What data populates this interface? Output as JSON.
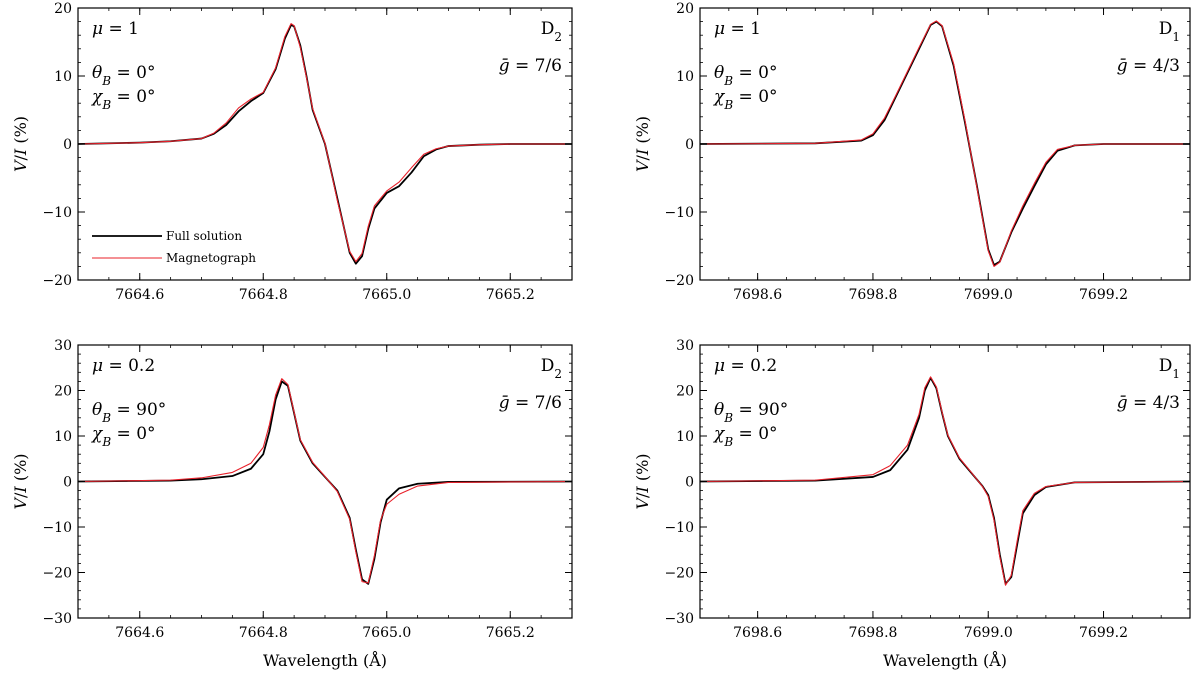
{
  "figure": {
    "xlabel": "Wavelength (Å)",
    "ylabel": "V/I (%)",
    "legend": {
      "placement": "lower-left of top-left panel",
      "entries": [
        {
          "label": "Full solution",
          "color": "#000000"
        },
        {
          "label": "Magnetograph",
          "color": "#e8202a"
        }
      ]
    }
  },
  "chart_data": [
    {
      "type": "line",
      "line": "D2",
      "annotations": {
        "mu": "μ = 1",
        "line": "D2",
        "g": "ḡ = 7/6",
        "theta": "θB = 0°",
        "chi": "χB = 0°"
      },
      "xlim": [
        7664.5,
        7665.3
      ],
      "ylim": [
        -20,
        20
      ],
      "xticks": [
        7664.6,
        7664.8,
        7665.0,
        7665.2
      ],
      "xtick_labels": [
        "7664.6",
        "7664.8",
        "7665.0",
        "7665.2"
      ],
      "yticks": [
        -20,
        -10,
        0,
        10,
        20
      ],
      "ytick_labels": [
        "−20",
        "−10",
        "0",
        "10",
        "20"
      ],
      "grid": false,
      "series": [
        {
          "name": "Full solution",
          "color": "#000000",
          "x": [
            7664.5,
            7664.6,
            7664.65,
            7664.7,
            7664.72,
            7664.74,
            7664.76,
            7664.78,
            7664.8,
            7664.82,
            7664.835,
            7664.845,
            7664.85,
            7664.86,
            7664.87,
            7664.88,
            7664.9,
            7664.92,
            7664.94,
            7664.95,
            7664.96,
            7664.97,
            7664.98,
            7665.0,
            7665.02,
            7665.04,
            7665.06,
            7665.08,
            7665.1,
            7665.15,
            7665.2,
            7665.3
          ],
          "y": [
            0,
            0.2,
            0.4,
            0.8,
            1.5,
            2.8,
            4.8,
            6.3,
            7.5,
            11,
            15.5,
            17.5,
            17.3,
            14.5,
            10,
            5,
            0,
            -8,
            -16,
            -17.6,
            -16.5,
            -12.5,
            -9.5,
            -7.2,
            -6.2,
            -4.2,
            -1.8,
            -0.8,
            -0.3,
            -0.1,
            0,
            0
          ]
        },
        {
          "name": "Magnetograph",
          "color": "#e8202a",
          "x": [
            7664.5,
            7664.6,
            7664.65,
            7664.7,
            7664.72,
            7664.74,
            7664.76,
            7664.78,
            7664.8,
            7664.82,
            7664.835,
            7664.845,
            7664.85,
            7664.86,
            7664.87,
            7664.88,
            7664.9,
            7664.92,
            7664.94,
            7664.95,
            7664.96,
            7664.97,
            7664.98,
            7665.0,
            7665.02,
            7665.04,
            7665.06,
            7665.08,
            7665.1,
            7665.15,
            7665.2,
            7665.3
          ],
          "y": [
            0,
            0.2,
            0.4,
            0.8,
            1.6,
            3.1,
            5.3,
            6.6,
            7.6,
            11.2,
            15.8,
            17.7,
            17.4,
            14.2,
            9.8,
            5.2,
            0.1,
            -8.3,
            -15.8,
            -17.3,
            -16.1,
            -12.1,
            -9.1,
            -6.9,
            -5.6,
            -3.5,
            -1.5,
            -0.7,
            -0.3,
            -0.1,
            0,
            0
          ]
        }
      ]
    },
    {
      "type": "line",
      "line": "D1",
      "annotations": {
        "mu": "μ = 1",
        "line": "D1",
        "g": "ḡ = 4/3",
        "theta": "θB = 0°",
        "chi": "χB = 0°"
      },
      "xlim": [
        7698.5,
        7699.35
      ],
      "ylim": [
        -20,
        20
      ],
      "xticks": [
        7698.6,
        7698.8,
        7699.0,
        7699.2
      ],
      "xtick_labels": [
        "7698.6",
        "7698.8",
        "7699.0",
        "7699.2"
      ],
      "yticks": [
        -20,
        -10,
        0,
        10,
        20
      ],
      "ytick_labels": [
        "−20",
        "−10",
        "0",
        "10",
        "20"
      ],
      "grid": false,
      "series": [
        {
          "name": "Full solution",
          "color": "#000000",
          "x": [
            7698.5,
            7698.7,
            7698.78,
            7698.8,
            7698.82,
            7698.84,
            7698.86,
            7698.88,
            7698.9,
            7698.91,
            7698.92,
            7698.94,
            7698.96,
            7698.98,
            7699.0,
            7699.01,
            7699.02,
            7699.04,
            7699.06,
            7699.08,
            7699.1,
            7699.12,
            7699.15,
            7699.2,
            7699.35
          ],
          "y": [
            0,
            0.1,
            0.5,
            1.3,
            3.5,
            7,
            10.5,
            14,
            17.5,
            18,
            17.3,
            11.5,
            3,
            -6,
            -15.5,
            -17.8,
            -17.3,
            -13,
            -9.5,
            -6.2,
            -3,
            -1,
            -0.2,
            0,
            0
          ]
        },
        {
          "name": "Magnetograph",
          "color": "#e8202a",
          "x": [
            7698.5,
            7698.7,
            7698.78,
            7698.8,
            7698.82,
            7698.84,
            7698.86,
            7698.88,
            7698.9,
            7698.91,
            7698.92,
            7698.94,
            7698.96,
            7698.98,
            7699.0,
            7699.01,
            7699.02,
            7699.04,
            7699.06,
            7699.08,
            7699.1,
            7699.12,
            7699.15,
            7699.2,
            7699.35
          ],
          "y": [
            0,
            0.1,
            0.6,
            1.5,
            3.8,
            7.2,
            10.7,
            14.2,
            17.6,
            18.1,
            17.4,
            11.8,
            3.3,
            -6.2,
            -15.7,
            -18,
            -17.4,
            -12.8,
            -9.1,
            -5.8,
            -2.7,
            -0.8,
            -0.2,
            0,
            0
          ]
        }
      ]
    },
    {
      "type": "line",
      "line": "D2",
      "annotations": {
        "mu": "μ = 0.2",
        "line": "D2",
        "g": "ḡ = 7/6",
        "theta": "θB = 90°",
        "chi": "χB = 0°"
      },
      "xlim": [
        7664.5,
        7665.3
      ],
      "ylim": [
        -30,
        30
      ],
      "xticks": [
        7664.6,
        7664.8,
        7665.0,
        7665.2
      ],
      "xtick_labels": [
        "7664.6",
        "7664.8",
        "7665.0",
        "7665.2"
      ],
      "yticks": [
        -30,
        -20,
        -10,
        0,
        10,
        20,
        30
      ],
      "ytick_labels": [
        "−30",
        "−20",
        "−10",
        "0",
        "10",
        "20",
        "30"
      ],
      "grid": false,
      "series": [
        {
          "name": "Full solution",
          "color": "#000000",
          "x": [
            7664.5,
            7664.65,
            7664.7,
            7664.75,
            7664.78,
            7664.8,
            7664.81,
            7664.82,
            7664.83,
            7664.84,
            7664.85,
            7664.86,
            7664.88,
            7664.9,
            7664.92,
            7664.94,
            7664.95,
            7664.96,
            7664.97,
            7664.98,
            7664.99,
            7665.0,
            7665.02,
            7665.05,
            7665.1,
            7665.3
          ],
          "y": [
            0,
            0.2,
            0.5,
            1.2,
            2.8,
            6,
            11,
            18,
            22,
            21,
            15,
            9,
            4,
            1,
            -2,
            -8,
            -15,
            -21.5,
            -22.5,
            -17,
            -9,
            -4,
            -1.5,
            -0.5,
            -0.1,
            0
          ]
        },
        {
          "name": "Magnetograph",
          "color": "#e8202a",
          "x": [
            7664.5,
            7664.65,
            7664.7,
            7664.75,
            7664.78,
            7664.8,
            7664.81,
            7664.82,
            7664.83,
            7664.84,
            7664.85,
            7664.86,
            7664.88,
            7664.9,
            7664.92,
            7664.94,
            7664.95,
            7664.96,
            7664.97,
            7664.98,
            7664.99,
            7665.0,
            7665.02,
            7665.05,
            7665.1,
            7665.3
          ],
          "y": [
            0,
            0.3,
            0.8,
            2,
            4,
            7.5,
            12.5,
            19,
            22.6,
            21.3,
            15.2,
            9.2,
            4.2,
            1.1,
            -2.2,
            -8.3,
            -15.5,
            -22,
            -22.3,
            -16.3,
            -8.5,
            -5,
            -2.8,
            -1,
            -0.2,
            0
          ]
        }
      ]
    },
    {
      "type": "line",
      "line": "D1",
      "annotations": {
        "mu": "μ = 0.2",
        "line": "D1",
        "g": "ḡ = 4/3",
        "theta": "θB = 90°",
        "chi": "χB = 0°"
      },
      "xlim": [
        7698.5,
        7699.35
      ],
      "ylim": [
        -30,
        30
      ],
      "xticks": [
        7698.6,
        7698.8,
        7699.0,
        7699.2
      ],
      "xtick_labels": [
        "7698.6",
        "7698.8",
        "7699.0",
        "7699.2"
      ],
      "yticks": [
        -30,
        -20,
        -10,
        0,
        10,
        20,
        30
      ],
      "ytick_labels": [
        "−30",
        "−20",
        "−10",
        "0",
        "10",
        "20",
        "30"
      ],
      "grid": false,
      "series": [
        {
          "name": "Full solution",
          "color": "#000000",
          "x": [
            7698.5,
            7698.7,
            7698.8,
            7698.83,
            7698.86,
            7698.88,
            7698.89,
            7698.9,
            7698.91,
            7698.92,
            7698.93,
            7698.95,
            7698.97,
            7698.99,
            7699.0,
            7699.01,
            7699.02,
            7699.03,
            7699.04,
            7699.05,
            7699.06,
            7699.08,
            7699.1,
            7699.15,
            7699.35
          ],
          "y": [
            0,
            0.2,
            1,
            2.5,
            7,
            14,
            20,
            22.8,
            20.5,
            15,
            10,
            5,
            2,
            -1,
            -3,
            -8,
            -16,
            -22.5,
            -21,
            -14,
            -7,
            -3,
            -1.2,
            -0.2,
            0
          ]
        },
        {
          "name": "Magnetograph",
          "color": "#e8202a",
          "x": [
            7698.5,
            7698.7,
            7698.8,
            7698.83,
            7698.86,
            7698.88,
            7698.89,
            7698.9,
            7698.91,
            7698.92,
            7698.93,
            7698.95,
            7698.97,
            7698.99,
            7699.0,
            7699.01,
            7699.02,
            7699.03,
            7699.04,
            7699.05,
            7699.06,
            7699.08,
            7699.1,
            7699.15,
            7699.35
          ],
          "y": [
            0,
            0.3,
            1.5,
            3.5,
            8,
            14.8,
            20.6,
            23,
            20.8,
            15.2,
            10.2,
            5.2,
            2.1,
            -1.1,
            -3.3,
            -8.5,
            -16.5,
            -22.8,
            -20.6,
            -13.2,
            -6.4,
            -2.6,
            -1.1,
            -0.2,
            0
          ]
        }
      ]
    }
  ]
}
